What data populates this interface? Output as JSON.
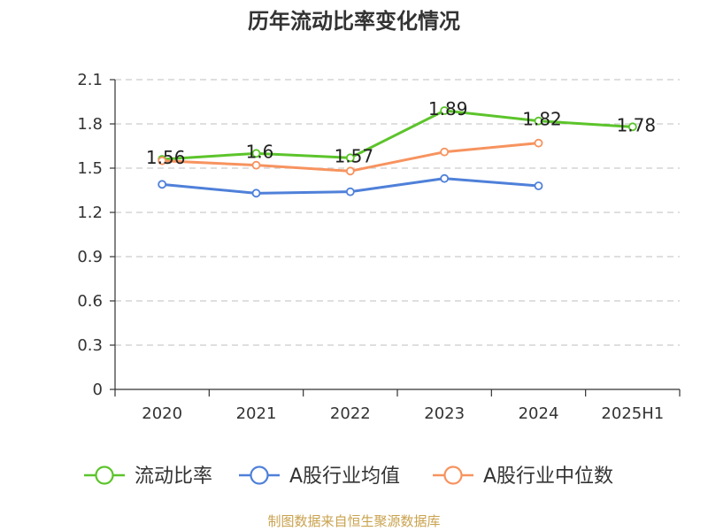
{
  "chart_data": {
    "type": "line",
    "title": "历年流动比率变化情况",
    "categories": [
      "2020",
      "2021",
      "2022",
      "2023",
      "2024",
      "2025H1"
    ],
    "ylim": [
      0,
      2.1
    ],
    "yticks": [
      0,
      0.3,
      0.6,
      0.9,
      1.2,
      1.5,
      1.8,
      2.1
    ],
    "grid": true,
    "legend_position": "bottom",
    "series": [
      {
        "name": "流动比率",
        "color": "#5cc42b",
        "values": [
          1.56,
          1.6,
          1.57,
          1.89,
          1.82,
          1.78
        ],
        "data_labels": true
      },
      {
        "name": "A股行业均值",
        "color": "#4f80d9",
        "values": [
          1.39,
          1.33,
          1.34,
          1.43,
          1.38,
          null
        ],
        "data_labels": false
      },
      {
        "name": "A股行业中位数",
        "color": "#f7935f",
        "values": [
          1.55,
          1.52,
          1.48,
          1.61,
          1.67,
          null
        ],
        "data_labels": false
      }
    ]
  },
  "footer": {
    "source": "制图数据来自恒生聚源数据库",
    "color": "#c9a24e"
  }
}
